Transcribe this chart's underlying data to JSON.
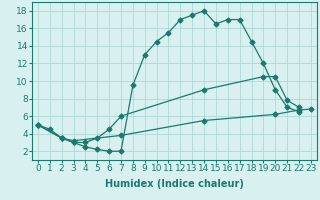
{
  "line1_x": [
    0,
    1,
    2,
    3,
    4,
    5,
    6,
    7,
    8,
    9,
    10,
    11,
    12,
    13,
    14,
    15,
    16,
    17,
    18,
    19,
    20,
    21,
    22
  ],
  "line1_y": [
    5,
    4.5,
    3.5,
    3.0,
    2.5,
    2.2,
    2.0,
    2.0,
    9.5,
    13.0,
    14.5,
    15.5,
    17.0,
    17.5,
    18.0,
    16.5,
    17.0,
    17.0,
    14.5,
    12.0,
    9.0,
    7.0,
    6.5
  ],
  "line2_x": [
    0,
    2,
    3,
    4,
    5,
    6,
    7,
    14,
    19,
    20,
    21,
    22
  ],
  "line2_y": [
    5,
    3.5,
    3.0,
    3.0,
    3.5,
    4.5,
    6.0,
    9.0,
    10.5,
    10.5,
    7.8,
    7.0
  ],
  "line3_x": [
    0,
    2,
    3,
    7,
    14,
    20,
    22,
    23
  ],
  "line3_y": [
    5,
    3.5,
    3.2,
    3.8,
    5.5,
    6.2,
    6.7,
    6.8
  ],
  "line_color": "#1a7a6e",
  "bg_color": "#d8f0f0",
  "grid_color": "#b0d8d8",
  "xlabel": "Humidex (Indice chaleur)",
  "xlim": [
    -0.5,
    23.5
  ],
  "ylim": [
    1,
    19
  ],
  "xticks": [
    0,
    1,
    2,
    3,
    4,
    5,
    6,
    7,
    8,
    9,
    10,
    11,
    12,
    13,
    14,
    15,
    16,
    17,
    18,
    19,
    20,
    21,
    22,
    23
  ],
  "yticks": [
    2,
    4,
    6,
    8,
    10,
    12,
    14,
    16,
    18
  ],
  "label_fontsize": 7,
  "tick_fontsize": 6.5
}
